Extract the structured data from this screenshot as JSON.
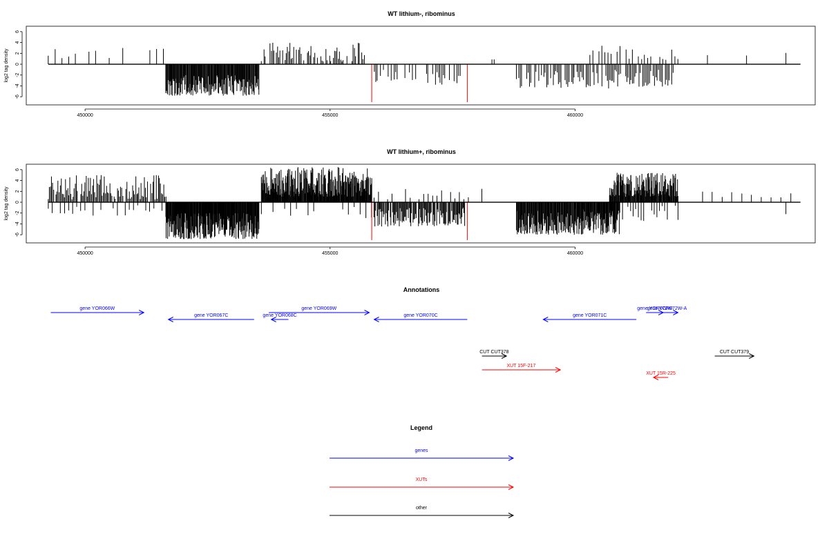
{
  "chart_data": [
    {
      "type": "bar",
      "title": "WT lithium-, ribominus",
      "ylabel": "log2 tag density",
      "ylim": [
        -7.5,
        7
      ],
      "xlim": [
        448800,
        464900
      ],
      "yticks": [
        -6,
        -4,
        -2,
        0,
        2,
        4,
        6
      ],
      "xticks": [
        450000,
        455000,
        460000
      ],
      "highlight_color": "#ff0000",
      "highlights": [
        {
          "x": 455850,
          "value": -7.0
        },
        {
          "x": 457800,
          "value": -7.0
        }
      ],
      "segments": [
        {
          "from": 449250,
          "to": 451600,
          "n": 18,
          "min": 1.0,
          "max": 3.2,
          "prob": 0.5,
          "seed": 11
        },
        {
          "from": 451650,
          "to": 453550,
          "n": 160,
          "min": -5.8,
          "max": -2.0,
          "prob": 1.0,
          "seed": 21
        },
        {
          "from": 453600,
          "to": 455850,
          "n": 90,
          "min": 0.5,
          "max": 4.0,
          "prob": 0.6,
          "seed": 31
        },
        {
          "from": 455900,
          "to": 457750,
          "n": 60,
          "min": -3.8,
          "max": -1.0,
          "prob": 0.5,
          "seed": 41
        },
        {
          "from": 458300,
          "to": 458350,
          "n": 2,
          "min": 0.6,
          "max": 1.0,
          "prob": 1.0,
          "seed": 51
        },
        {
          "from": 458800,
          "to": 462000,
          "n": 120,
          "min": -4.5,
          "max": -1.0,
          "prob": 0.75,
          "seed": 61
        },
        {
          "from": 460300,
          "to": 462100,
          "n": 30,
          "min": 0.8,
          "max": 3.5,
          "prob": 0.8,
          "seed": 71
        },
        {
          "from": 462700,
          "to": 464300,
          "n": 3,
          "min": 1.5,
          "max": 2.4,
          "prob": 1.0,
          "seed": 81
        }
      ]
    },
    {
      "type": "bar",
      "title": "WT lithium+, ribominus",
      "ylabel": "log2 tag density",
      "ylim": [
        -7.5,
        7
      ],
      "xlim": [
        448800,
        464900
      ],
      "yticks": [
        -6,
        -4,
        -2,
        0,
        2,
        4,
        6
      ],
      "xticks": [
        450000,
        455000,
        460000
      ],
      "highlight_color": "#ff0000",
      "highlights": [
        {
          "x": 455850,
          "value": -7.0
        },
        {
          "x": 457800,
          "value": -7.0
        }
      ],
      "segments": [
        {
          "from": 449250,
          "to": 451650,
          "n": 110,
          "min": 0.5,
          "max": 5.0,
          "prob": 0.9,
          "seed": 12
        },
        {
          "from": 449250,
          "to": 451650,
          "n": 30,
          "min": -2.5,
          "max": -0.5,
          "prob": 0.7,
          "seed": 13
        },
        {
          "from": 451650,
          "to": 453550,
          "n": 240,
          "min": -6.8,
          "max": -2.0,
          "prob": 1.0,
          "seed": 22
        },
        {
          "from": 453600,
          "to": 455850,
          "n": 260,
          "min": 1.0,
          "max": 6.5,
          "prob": 1.0,
          "seed": 32
        },
        {
          "from": 453600,
          "to": 455850,
          "n": 20,
          "min": -3.0,
          "max": -0.5,
          "prob": 0.7,
          "seed": 33
        },
        {
          "from": 455900,
          "to": 457750,
          "n": 120,
          "min": -4.5,
          "max": -1.0,
          "prob": 0.95,
          "seed": 42
        },
        {
          "from": 455900,
          "to": 458100,
          "n": 25,
          "min": 0.5,
          "max": 2.5,
          "prob": 0.7,
          "seed": 43
        },
        {
          "from": 458800,
          "to": 460900,
          "n": 200,
          "min": -6.0,
          "max": -1.5,
          "prob": 1.0,
          "seed": 62
        },
        {
          "from": 460700,
          "to": 462100,
          "n": 140,
          "min": 1.0,
          "max": 5.5,
          "prob": 1.0,
          "seed": 72
        },
        {
          "from": 460000,
          "to": 462100,
          "n": 40,
          "min": -3.5,
          "max": -0.5,
          "prob": 0.8,
          "seed": 73
        },
        {
          "from": 462600,
          "to": 464400,
          "n": 10,
          "min": 0.8,
          "max": 2.0,
          "prob": 1.0,
          "seed": 82
        },
        {
          "from": 464300,
          "to": 464350,
          "n": 1,
          "min": -2.2,
          "max": -2.2,
          "prob": 1.0,
          "seed": 83
        }
      ]
    }
  ],
  "annotations": {
    "title": "Annotations",
    "items": [
      {
        "label": "gene YOR066W",
        "from": 449300,
        "to": 451200,
        "row": 0,
        "dir": 1,
        "color": "#0000ff"
      },
      {
        "label": "gene YOR067C",
        "from": 451700,
        "to": 453450,
        "row": 1,
        "dir": -1,
        "color": "#0000ff"
      },
      {
        "label": "gene YOR068C",
        "from": 453800,
        "to": 454150,
        "row": 1,
        "dir": -1,
        "color": "#0000ff"
      },
      {
        "label": "gene YOR069W",
        "from": 453750,
        "to": 455800,
        "row": 0,
        "dir": 1,
        "color": "#0000ff"
      },
      {
        "label": "gene YOR070C",
        "from": 455900,
        "to": 457800,
        "row": 1,
        "dir": -1,
        "color": "#0000ff"
      },
      {
        "label": "gene YOR071C",
        "from": 459350,
        "to": 461250,
        "row": 1,
        "dir": -1,
        "color": "#0000ff"
      },
      {
        "label": "gene YOR072W",
        "from": 461450,
        "to": 461800,
        "row": 0,
        "dir": 1,
        "color": "#0000ff"
      },
      {
        "label": "gene YOR072W-A",
        "from": 461650,
        "to": 462100,
        "row": 0,
        "dir": 1,
        "color": "#0000ff"
      },
      {
        "label": "CUT CUT378",
        "from": 458100,
        "to": 458600,
        "row": 2,
        "dir": 1,
        "color": "#000000"
      },
      {
        "label": "CUT CUT379",
        "from": 462850,
        "to": 463650,
        "row": 2,
        "dir": 1,
        "color": "#000000"
      },
      {
        "label": "XUT 15F-217",
        "from": 458100,
        "to": 459700,
        "row": 3,
        "dir": 1,
        "color": "#ff0000"
      },
      {
        "label": "XUT 15R-225",
        "from": 461600,
        "to": 461900,
        "row": 4,
        "dir": -1,
        "color": "#ff0000"
      }
    ]
  },
  "legend": {
    "title": "Legend",
    "items": [
      {
        "label": "genes",
        "color": "#0000ff"
      },
      {
        "label": "XUTs",
        "color": "#ff0000"
      },
      {
        "label": "other",
        "color": "#000000"
      }
    ]
  }
}
